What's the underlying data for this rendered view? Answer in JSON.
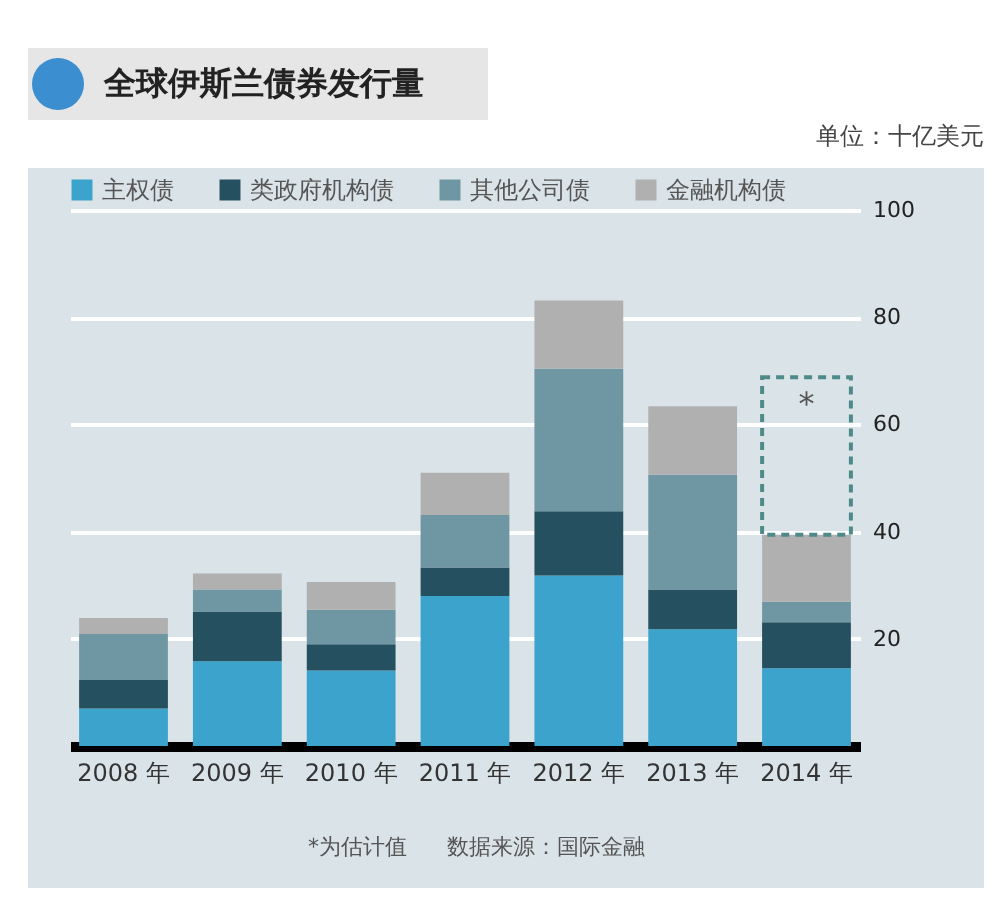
{
  "chart_data": {
    "type": "bar",
    "title": "全球伊斯兰债券发行量",
    "ylabel": "单位：十亿美元",
    "categories": [
      "2008 年",
      "2009 年",
      "2010 年",
      "2011 年",
      "2012 年",
      "2013 年",
      "2014 年"
    ],
    "stacked": true,
    "series": [
      {
        "name": "主权债",
        "color": "#3ba3cc",
        "values": [
          7.0,
          15.8,
          14.1,
          28.0,
          31.8,
          21.8,
          14.5
        ]
      },
      {
        "name": "类政府机构债",
        "color": "#25505f",
        "values": [
          5.3,
          9.3,
          4.9,
          5.3,
          12.0,
          7.4,
          8.6
        ]
      },
      {
        "name": "其他公司债",
        "color": "#6f96a3",
        "values": [
          8.6,
          4.1,
          6.4,
          9.8,
          26.6,
          21.4,
          3.8
        ]
      },
      {
        "name": "金融机构债",
        "color": "#b0b0b0",
        "values": [
          3.0,
          3.0,
          5.2,
          7.9,
          12.7,
          12.8,
          12.5
        ]
      },
      {
        "color": "#4e8a8a",
        "line_style": "dashed",
        "values": [
          null,
          null,
          null,
          null,
          null,
          null,
          29.4
        ],
        "value_labels": [
          null,
          null,
          null,
          null,
          null,
          null,
          "*"
        ]
      }
    ],
    "ylim": [
      0,
      100
    ],
    "yticks": [
      20,
      40,
      60,
      80,
      100
    ],
    "grid": "y",
    "legend": "top",
    "annotations": [
      "*为估计值",
      "数据来源：国际金融"
    ]
  }
}
